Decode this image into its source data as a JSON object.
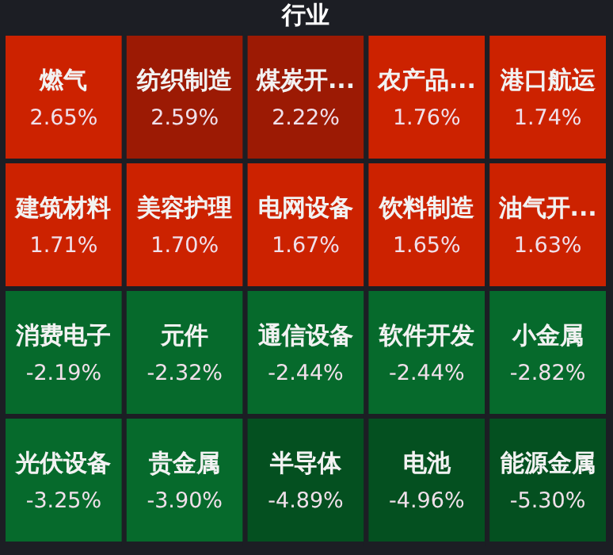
{
  "chart_data": {
    "type": "other",
    "title": "行业",
    "categories": [
      "燃气",
      "纺织制造",
      "煤炭开...",
      "农产品...",
      "港口航运",
      "建筑材料",
      "美容护理",
      "电网设备",
      "饮料制造",
      "油气开...",
      "消费电子",
      "元件",
      "通信设备",
      "软件开发",
      "小金属",
      "光伏设备",
      "贵金属",
      "半导体",
      "电池",
      "能源金属"
    ],
    "values": [
      2.65,
      2.59,
      2.22,
      1.76,
      1.74,
      1.71,
      1.7,
      1.67,
      1.65,
      1.63,
      -2.19,
      -2.32,
      -2.44,
      -2.44,
      -2.82,
      -3.25,
      -3.9,
      -4.89,
      -4.96,
      -5.3
    ],
    "value_labels": [
      "2.65%",
      "2.59%",
      "2.22%",
      "1.76%",
      "1.74%",
      "1.71%",
      "1.70%",
      "1.67%",
      "1.65%",
      "1.63%",
      "-2.19%",
      "-2.32%",
      "-2.44%",
      "-2.44%",
      "-2.82%",
      "-3.25%",
      "-3.90%",
      "-4.89%",
      "-4.96%",
      "-5.30%"
    ],
    "colors": [
      "#cc2200",
      "#9c1a04",
      "#9c1a04",
      "#cc2200",
      "#cc2200",
      "#cc2200",
      "#cc2200",
      "#cc2200",
      "#cc2200",
      "#cc2200",
      "#066a2c",
      "#066a2c",
      "#066a2c",
      "#066a2c",
      "#066a2c",
      "#066a2c",
      "#066a2c",
      "#045020",
      "#045020",
      "#045020"
    ]
  }
}
